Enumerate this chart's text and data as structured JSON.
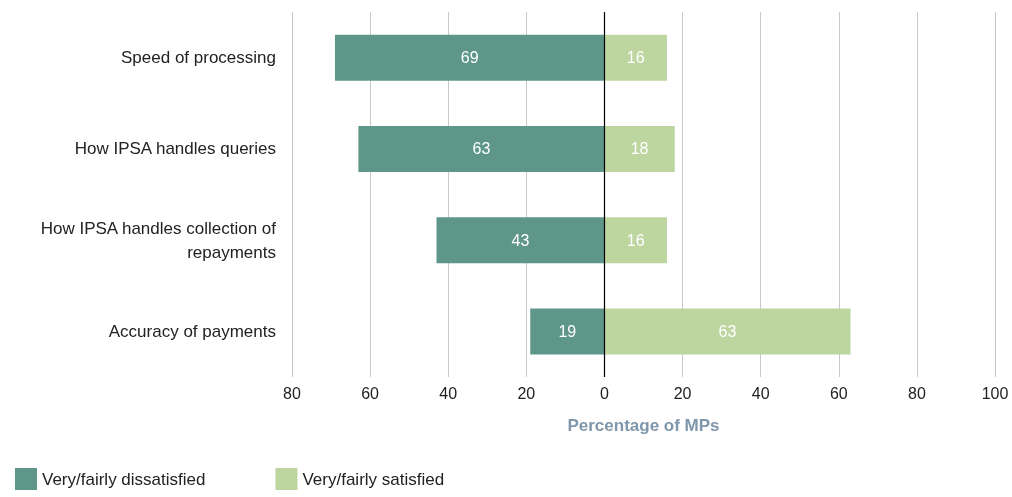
{
  "chart_data": {
    "type": "bar",
    "orientation": "horizontal",
    "data_labels": true,
    "categories": [
      "Speed of processing",
      "How IPSA handles queries",
      "How IPSA handles collection of repayments",
      "Accuracy of payments"
    ],
    "series": [
      {
        "name": "Very/fairly dissatisfied",
        "color": "#5f968a",
        "values": [
          69,
          63,
          43,
          19
        ],
        "base": [
          -69,
          -63,
          -43,
          -19
        ]
      },
      {
        "name": "Very/fairly satisfied",
        "color": "#bdd6a0",
        "values": [
          16,
          18,
          16,
          63
        ]
      }
    ],
    "xlabel": "Percentage of MPs",
    "xlim": [
      -80,
      100
    ],
    "xticks": [
      {
        "value": -80,
        "label": "80"
      },
      {
        "value": -60,
        "label": "60"
      },
      {
        "value": -40,
        "label": "40"
      },
      {
        "value": -20,
        "label": "20"
      },
      0,
      20,
      40,
      60,
      80,
      100
    ],
    "ref_lines": [
      {
        "axis": "x",
        "value": 0,
        "color": "#000000"
      }
    ],
    "grid": "x",
    "legend": "bottom left"
  }
}
